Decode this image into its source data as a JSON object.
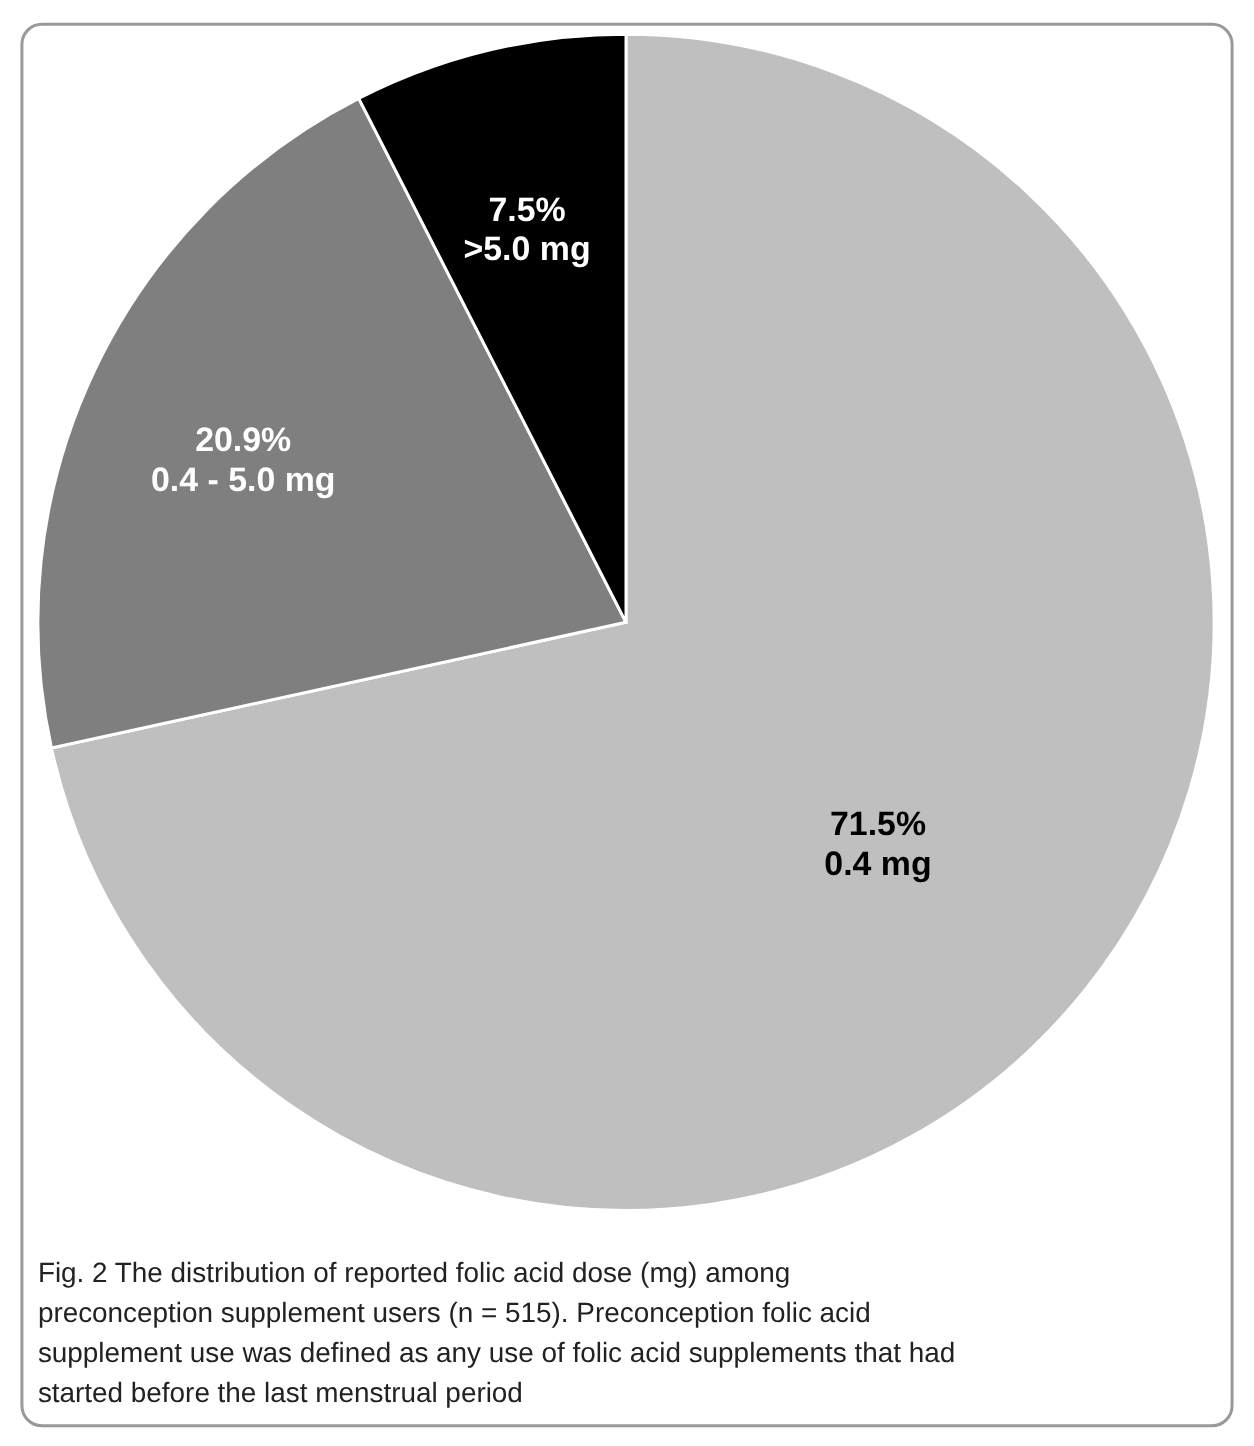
{
  "chart_data": {
    "type": "pie",
    "categories": [
      "0.4 mg",
      "0.4 - 5.0 mg",
      ">5.0 mg"
    ],
    "values": [
      71.5,
      20.9,
      7.5
    ],
    "colors": [
      "#bfbfbf",
      "#7f7f7f",
      "#000000"
    ],
    "value_labels": [
      "71.5%",
      "20.9%",
      "7.5%"
    ],
    "annotations": [
      "Fig. 2 The distribution of reported folic acid dose (mg) among preconception supplement users (n = 515). Preconception folic acid supplement use was defined as any use of folic acid supplements that had started before the last menstrual period"
    ],
    "legend": false
  }
}
